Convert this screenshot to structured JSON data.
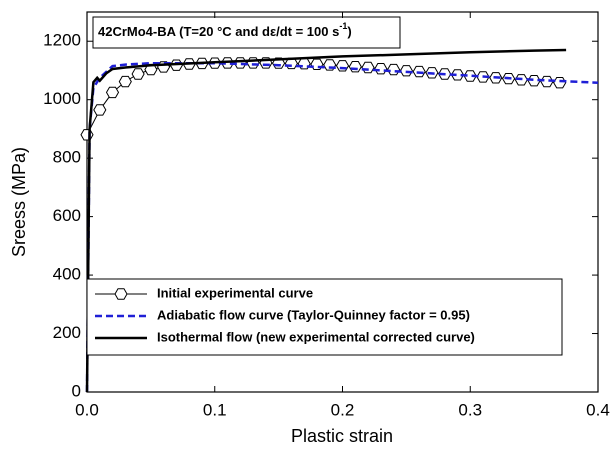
{
  "chart_data": {
    "type": "line",
    "annotation": {
      "text": "42CrMo4-BA (T=20 °C and dε/dt = 100 s",
      "superscript": "-1",
      "suffix": ")"
    },
    "x_label": "Plastic strain",
    "y_label": "Sreess (MPa)",
    "xlim": [
      0,
      0.4
    ],
    "ylim": [
      0,
      1300
    ],
    "xticks": [
      {
        "value": 0,
        "label": "0.0"
      },
      0.1,
      0.2,
      0.3,
      0.4
    ],
    "yticks": [
      0,
      200,
      400,
      600,
      800,
      1000,
      1200
    ],
    "legend": "lower-left",
    "series": [
      {
        "name": "Initial experimental curve",
        "color": "#000000",
        "marker": "hexagon",
        "dash": false,
        "x": [
          0.0,
          0.01,
          0.02,
          0.03,
          0.04,
          0.05,
          0.06,
          0.07,
          0.08,
          0.09,
          0.1,
          0.11,
          0.12,
          0.13,
          0.14,
          0.15,
          0.16,
          0.17,
          0.18,
          0.19,
          0.2,
          0.21,
          0.22,
          0.23,
          0.24,
          0.25,
          0.26,
          0.27,
          0.28,
          0.29,
          0.3,
          0.31,
          0.32,
          0.33,
          0.34,
          0.35,
          0.36,
          0.37
        ],
        "values": [
          880,
          965,
          1025,
          1062,
          1088,
          1103,
          1112,
          1118,
          1122,
          1124,
          1125,
          1126,
          1126,
          1126,
          1126,
          1125,
          1124,
          1123,
          1121,
          1119,
          1116,
          1113,
          1110,
          1106,
          1103,
          1099,
          1096,
          1092,
          1088,
          1085,
          1081,
          1078,
          1075,
          1072,
          1068,
          1065,
          1062,
          1058
        ]
      },
      {
        "name": "Adiabatic flow curve (Taylor-Quinney factor = 0.95)",
        "color": "#1f1fd6",
        "marker": "none",
        "dash": true,
        "x": [
          0,
          0.002,
          0.005,
          0.01,
          0.015,
          0.02,
          0.03,
          0.05,
          0.1,
          0.15,
          0.2,
          0.25,
          0.3,
          0.35,
          0.4
        ],
        "values": [
          0,
          900,
          1040,
          1075,
          1095,
          1115,
          1120,
          1125,
          1125,
          1118,
          1108,
          1095,
          1082,
          1068,
          1058
        ]
      },
      {
        "name": "Isothermal flow (new experimental corrected curve)",
        "color": "#000000",
        "marker": "none",
        "dash": false,
        "x": [
          0,
          0.002,
          0.005,
          0.008,
          0.01,
          0.015,
          0.02,
          0.03,
          0.05,
          0.1,
          0.15,
          0.2,
          0.25,
          0.3,
          0.35,
          0.375
        ],
        "values": [
          0,
          900,
          1060,
          1075,
          1065,
          1090,
          1105,
          1110,
          1118,
          1128,
          1138,
          1148,
          1155,
          1162,
          1168,
          1170
        ]
      }
    ]
  }
}
